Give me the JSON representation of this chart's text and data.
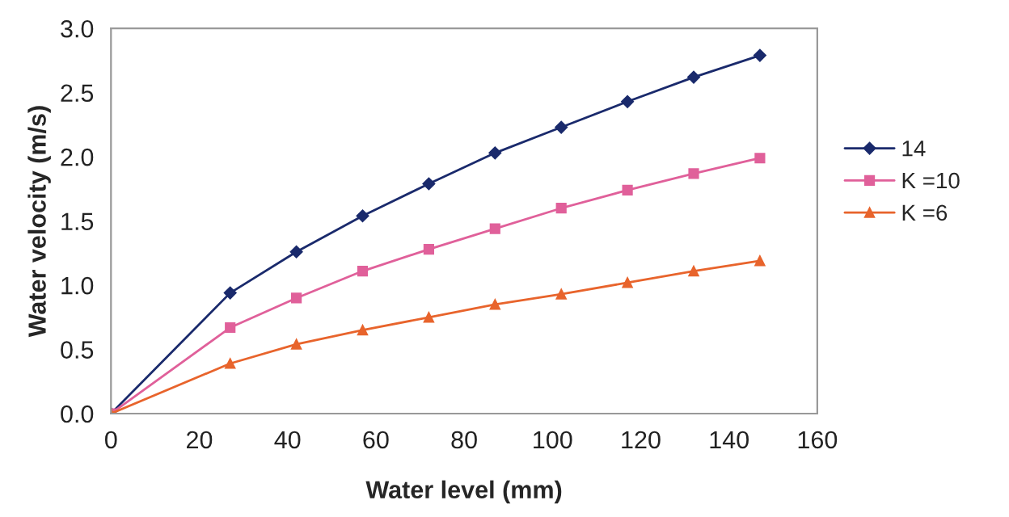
{
  "chart_data": {
    "type": "line",
    "xlabel": "Water level (mm)",
    "ylabel": "Water velocity (m/s)",
    "x": [
      0,
      27,
      42,
      57,
      72,
      87,
      102,
      117,
      132,
      147
    ],
    "series": [
      {
        "name": "14",
        "color": "#1a2a6c",
        "marker": "diamond",
        "values": [
          0,
          0.94,
          1.26,
          1.54,
          1.79,
          2.03,
          2.23,
          2.43,
          2.62,
          2.79
        ]
      },
      {
        "name": "K =10",
        "color": "#e0609a",
        "marker": "square",
        "values": [
          0,
          0.67,
          0.9,
          1.11,
          1.28,
          1.44,
          1.6,
          1.74,
          1.87,
          1.99
        ]
      },
      {
        "name": "K =6",
        "color": "#e8642c",
        "marker": "triangle",
        "values": [
          0,
          0.39,
          0.54,
          0.65,
          0.75,
          0.85,
          0.93,
          1.02,
          1.11,
          1.19
        ]
      }
    ],
    "xlim": [
      0,
      160
    ],
    "xticks": [
      0,
      20,
      40,
      60,
      80,
      100,
      120,
      140,
      160
    ],
    "ylim": [
      0,
      3.0
    ],
    "yticks": [
      {
        "value": 0,
        "label": "0.0"
      },
      {
        "value": 0.5,
        "label": "0.5"
      },
      {
        "value": 1.0,
        "label": "1.0"
      },
      {
        "value": 1.5,
        "label": "1.5"
      },
      {
        "value": 2.0,
        "label": "2.0"
      },
      {
        "value": 2.5,
        "label": "2.5"
      },
      {
        "value": 3.0,
        "label": "3.0"
      }
    ],
    "grid": false,
    "legend": "right",
    "line_style": "solid"
  }
}
